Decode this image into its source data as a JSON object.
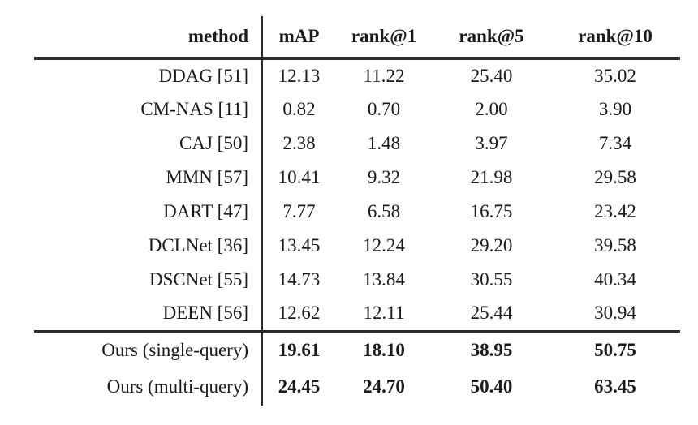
{
  "colors": {
    "background": "#ffffff",
    "text": "#1b1b1b",
    "rule": "#2b2b2b"
  },
  "table": {
    "columns": [
      "method",
      "mAP",
      "rank@1",
      "rank@5",
      "rank@10"
    ],
    "rows": [
      {
        "method": "DDAG [51]",
        "values": [
          "12.13",
          "11.22",
          "25.40",
          "35.02"
        ],
        "bold": false
      },
      {
        "method": "CM-NAS [11]",
        "values": [
          "0.82",
          "0.70",
          "2.00",
          "3.90"
        ],
        "bold": false
      },
      {
        "method": "CAJ [50]",
        "values": [
          "2.38",
          "1.48",
          "3.97",
          "7.34"
        ],
        "bold": false
      },
      {
        "method": "MMN [57]",
        "values": [
          "10.41",
          "9.32",
          "21.98",
          "29.58"
        ],
        "bold": false
      },
      {
        "method": "DART [47]",
        "values": [
          "7.77",
          "6.58",
          "16.75",
          "23.42"
        ],
        "bold": false
      },
      {
        "method": "DCLNet [36]",
        "values": [
          "13.45",
          "12.24",
          "29.20",
          "39.58"
        ],
        "bold": false
      },
      {
        "method": "DSCNet [55]",
        "values": [
          "14.73",
          "13.84",
          "30.55",
          "40.34"
        ],
        "bold": false
      },
      {
        "method": "DEEN [56]",
        "values": [
          "12.62",
          "12.11",
          "25.44",
          "30.94"
        ],
        "bold": false
      },
      {
        "method": "Ours (single-query)",
        "values": [
          "19.61",
          "18.10",
          "38.95",
          "50.75"
        ],
        "bold": true
      },
      {
        "method": "Ours (multi-query)",
        "values": [
          "24.45",
          "24.70",
          "50.40",
          "63.45"
        ],
        "bold": true
      }
    ]
  }
}
